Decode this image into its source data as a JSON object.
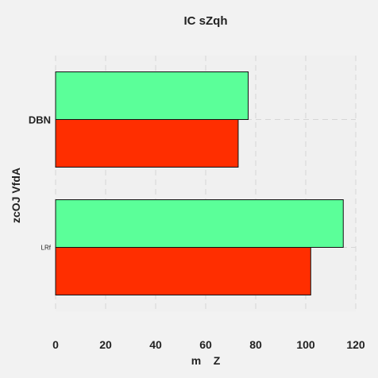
{
  "chart_data": {
    "type": "bar",
    "orientation": "horizontal",
    "title": "IC sZqh",
    "xlabel": "m    Z",
    "ylabel": "zcOJ VfdA",
    "categories": [
      "LRf",
      "DBN"
    ],
    "series": [
      {
        "values": [
          102,
          73
        ],
        "color": "#ff2e00"
      },
      {
        "values": [
          115,
          77
        ],
        "color": "#5bff99"
      }
    ],
    "xlim": [
      0,
      120
    ],
    "xticks": [
      0,
      20,
      40,
      60,
      80,
      100,
      120
    ],
    "grid": true,
    "legend": "none"
  }
}
